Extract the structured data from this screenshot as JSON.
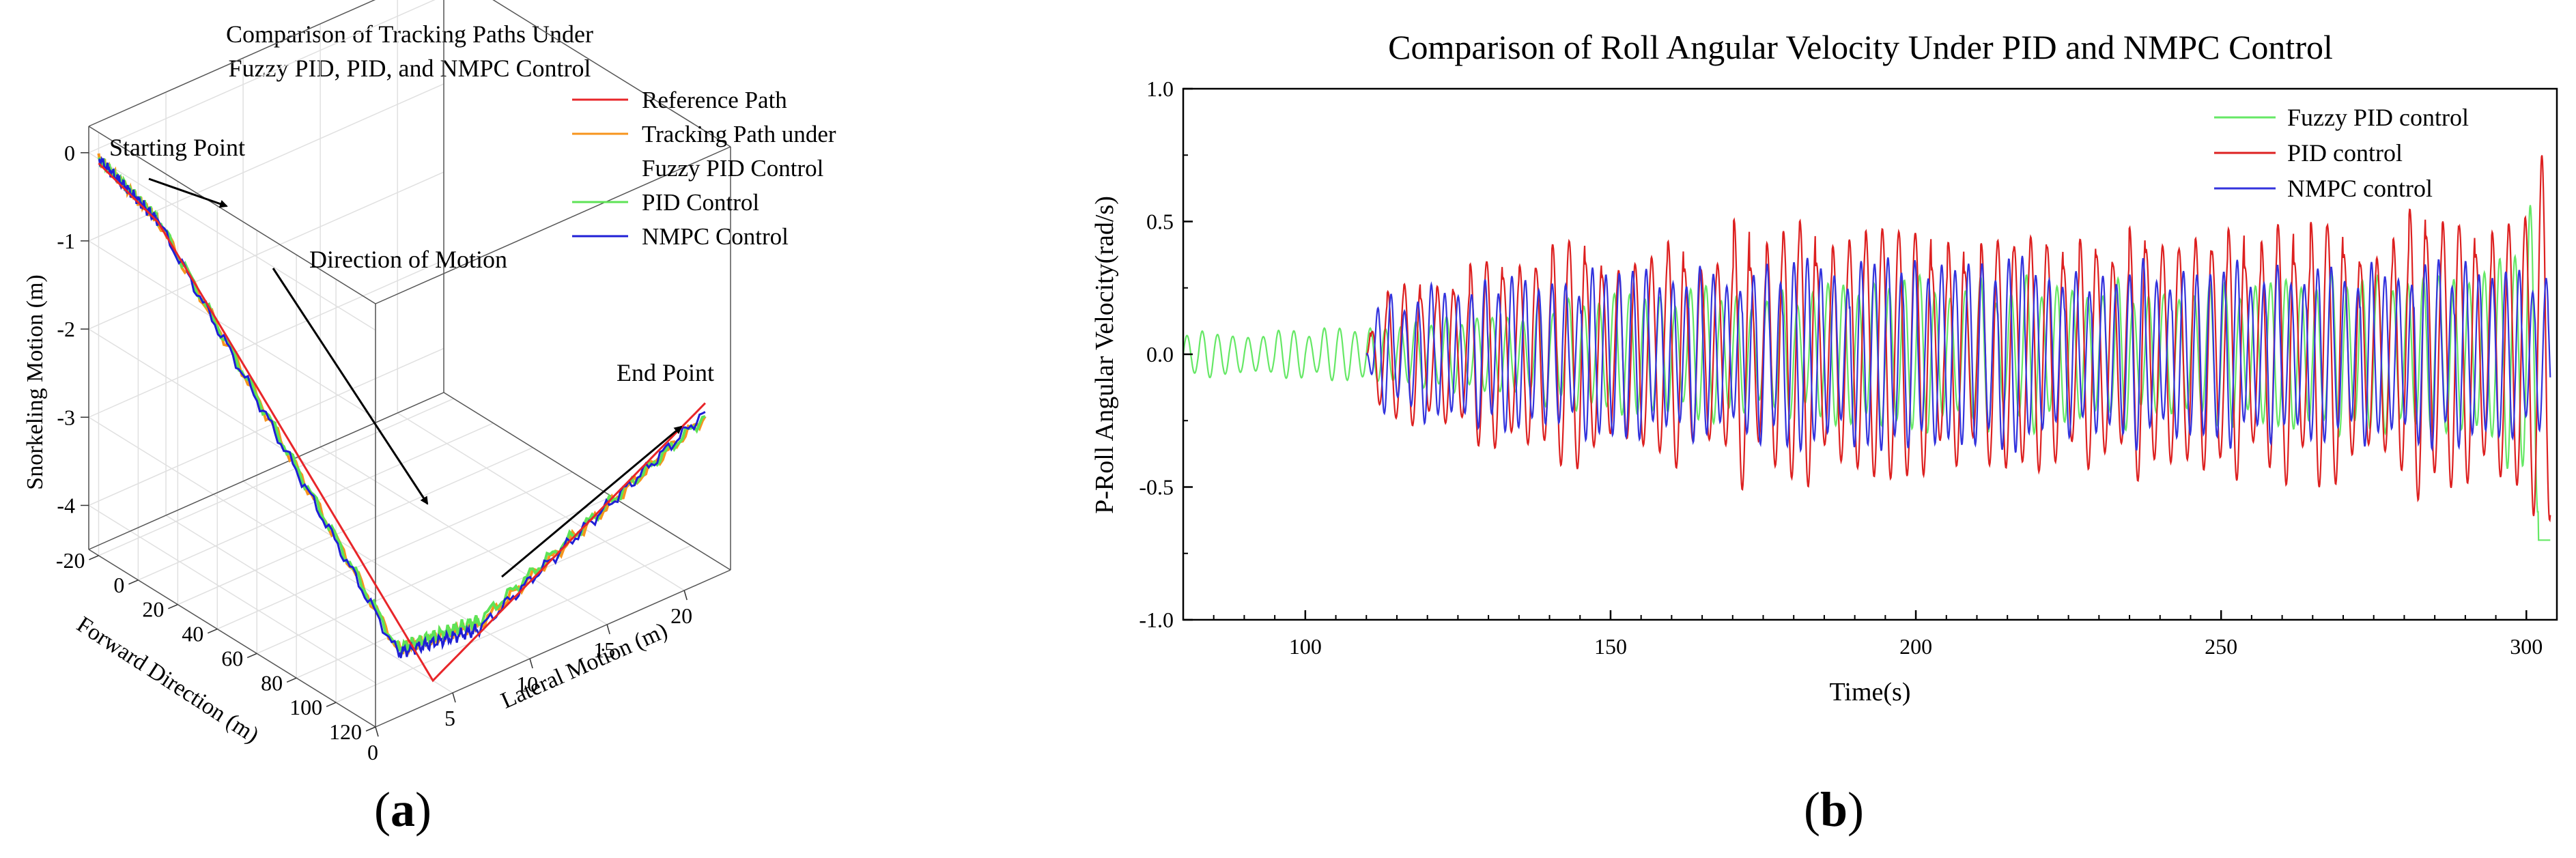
{
  "panel_a": {
    "label_letter": "a",
    "title_line1": "Comparison of Tracking Paths Under",
    "title_line2": "Fuzzy PID, PID, and NMPC Control",
    "annotations": {
      "start": "Starting Point",
      "direction": "Direction of Motion",
      "end": "End Point"
    },
    "legend": [
      {
        "label": "Reference Path",
        "color": "#e8262a"
      },
      {
        "label": "Tracking Path under",
        "color": "#f7941d"
      },
      {
        "label": "Fuzzy PID Control",
        "color": ""
      },
      {
        "label": "PID Control",
        "color": "#5ee356"
      },
      {
        "label": "NMPC Control",
        "color": "#1f1fd6"
      }
    ]
  },
  "panel_b": {
    "label_letter": "b",
    "colors": {
      "fuzzy": "#66e866",
      "pid": "#dd2020",
      "nmpc": "#3333dd"
    }
  },
  "chart_data": [
    {
      "type": "line",
      "subtype": "3d",
      "title": "Comparison of Tracking Paths Under Fuzzy PID, PID, and NMPC Control",
      "xlabel": "Forward Direction (m)",
      "ylabel": "Lateral Motion (m)",
      "zlabel": "Snorkeling Motion (m)",
      "xticks": [
        "-20",
        "0",
        "20",
        "40",
        "60",
        "80",
        "100",
        "120"
      ],
      "yticks": [
        "0",
        "5",
        "10",
        "15",
        "20"
      ],
      "zticks": [
        "0",
        "-1",
        "-2",
        "-3",
        "-4"
      ],
      "xlim": [
        -25,
        120
      ],
      "ylim": [
        0,
        23
      ],
      "zlim": [
        -4.5,
        0.3
      ],
      "grid": true,
      "legend_position": "top-right",
      "series": [
        {
          "name": "Reference Path",
          "x": [
            -20,
            10,
            110,
            115
          ],
          "y": [
            0,
            0,
            5,
            22
          ],
          "z": [
            -0.05,
            -0.3,
            -4.5,
            -2.6
          ]
        },
        {
          "name": "Tracking Path under Fuzzy PID Control",
          "x": [
            -20,
            10,
            100,
            110,
            115
          ],
          "y": [
            0,
            0,
            4,
            8,
            22
          ],
          "z": [
            0.0,
            -0.28,
            -4.2,
            -4.1,
            -2.75
          ]
        },
        {
          "name": "PID Control",
          "x": [
            -20,
            10,
            100,
            110,
            115
          ],
          "y": [
            0,
            0,
            4,
            8,
            22
          ],
          "z": [
            0.0,
            -0.27,
            -4.2,
            -4.05,
            -2.75
          ]
        },
        {
          "name": "NMPC Control",
          "x": [
            -20,
            10,
            100,
            110,
            115
          ],
          "y": [
            0,
            0,
            4,
            8,
            22
          ],
          "z": [
            0.0,
            -0.29,
            -4.25,
            -4.15,
            -2.7
          ]
        }
      ]
    },
    {
      "type": "line",
      "title": "Comparison of Roll Angular Velocity Under PID and NMPC Control",
      "xlabel": "Time(s)",
      "ylabel": "P-Roll Angular Velocity(rad/s)",
      "xlim": [
        80,
        305
      ],
      "ylim": [
        -1.0,
        1.0
      ],
      "xticks": [
        100,
        150,
        200,
        250,
        300
      ],
      "yticks": [
        "1.0",
        "0.5",
        "0.0",
        "-0.5",
        "-1.0"
      ],
      "grid": false,
      "legend_position": "top-right",
      "series": [
        {
          "name": "Fuzzy PID control",
          "shape": "oscillation",
          "envelope_t": [
            80,
            110,
            150,
            200,
            250,
            295,
            301,
            302.5,
            303,
            304
          ],
          "envelope_a": [
            0.08,
            0.09,
            0.2,
            0.25,
            0.25,
            0.3,
            0.62,
            0.65,
            0.7,
            0.7
          ],
          "period_s": 2.5
        },
        {
          "name": "PID control",
          "shape": "oscillation",
          "envelope_t": [
            110,
            112,
            150,
            180,
            200,
            250,
            290,
            300,
            303,
            304
          ],
          "envelope_a": [
            0.0,
            0.25,
            0.38,
            0.45,
            0.4,
            0.4,
            0.48,
            0.5,
            0.73,
            0.55
          ],
          "period_s": 2.7
        },
        {
          "name": "NMPC control",
          "shape": "oscillation",
          "envelope_t": [
            110,
            112,
            150,
            200,
            250,
            300,
            304
          ],
          "envelope_a": [
            0.0,
            0.2,
            0.3,
            0.32,
            0.3,
            0.3,
            0.3
          ],
          "period_s": 2.2
        }
      ]
    }
  ]
}
